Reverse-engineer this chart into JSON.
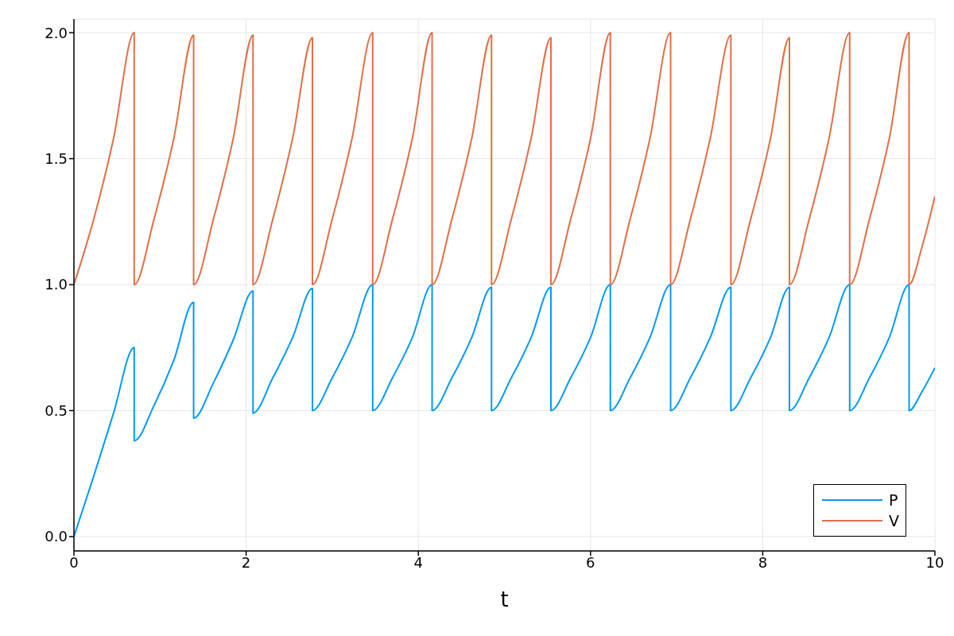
{
  "chart_data": {
    "type": "line",
    "xlabel": "t",
    "x": [
      0,
      0.23,
      0.46,
      0.7,
      0.7,
      0.93,
      1.16,
      1.39,
      1.39,
      1.62,
      1.85,
      2.08,
      2.08,
      2.31,
      2.54,
      2.77,
      2.77,
      3.0,
      3.23,
      3.47,
      3.47,
      3.7,
      3.93,
      4.16,
      4.16,
      4.39,
      4.62,
      4.85,
      4.85,
      5.08,
      5.31,
      5.54,
      5.54,
      5.77,
      6.0,
      6.23,
      6.23,
      6.46,
      6.69,
      6.93,
      6.93,
      7.16,
      7.39,
      7.63,
      7.63,
      7.86,
      8.09,
      8.31,
      8.31,
      8.54,
      8.77,
      9.01,
      9.01,
      9.24,
      9.47,
      9.7,
      9.7,
      9.85,
      10
    ],
    "series": [
      {
        "name": "P",
        "color": "#009af9",
        "values": [
          0,
          0.24,
          0.49,
          0.75,
          0.38,
          0.52,
          0.7,
          0.93,
          0.47,
          0.61,
          0.78,
          0.975,
          0.49,
          0.63,
          0.79,
          0.985,
          0.5,
          0.63,
          0.79,
          1.0,
          0.5,
          0.63,
          0.79,
          1.0,
          0.5,
          0.63,
          0.79,
          0.99,
          0.5,
          0.63,
          0.79,
          0.99,
          0.5,
          0.63,
          0.79,
          1.0,
          0.5,
          0.63,
          0.79,
          1.0,
          0.5,
          0.63,
          0.79,
          0.99,
          0.5,
          0.63,
          0.79,
          0.99,
          0.5,
          0.63,
          0.79,
          1.0,
          0.5,
          0.63,
          0.79,
          1.0,
          0.5,
          0.575,
          0.67
        ]
      },
      {
        "name": "V",
        "color": "#e26f46",
        "values": [
          1.0,
          1.26,
          1.58,
          2.0,
          1.0,
          1.26,
          1.58,
          1.99,
          1.0,
          1.26,
          1.58,
          1.99,
          1.0,
          1.26,
          1.58,
          1.98,
          1.0,
          1.26,
          1.58,
          2.0,
          1.0,
          1.26,
          1.58,
          2.0,
          1.0,
          1.26,
          1.58,
          1.99,
          1.0,
          1.26,
          1.58,
          1.98,
          1.0,
          1.26,
          1.58,
          2.0,
          1.0,
          1.26,
          1.58,
          2.0,
          1.0,
          1.26,
          1.58,
          1.99,
          1.0,
          1.26,
          1.58,
          1.98,
          1.0,
          1.26,
          1.58,
          2.0,
          1.0,
          1.26,
          1.58,
          2.0,
          1.0,
          1.15,
          1.35
        ]
      }
    ],
    "xlim": [
      0,
      10
    ],
    "xticks": [
      0,
      2,
      4,
      6,
      8,
      10
    ],
    "ylim": [
      -0.057,
      2.054
    ],
    "yticks": [
      {
        "value": 0,
        "label": "0.0"
      },
      0.5,
      {
        "value": 1,
        "label": "1.0"
      },
      1.5,
      {
        "value": 2,
        "label": "2.0"
      }
    ],
    "grid": true,
    "legend": "bottom right",
    "marker": "none",
    "line_style": "solid"
  }
}
